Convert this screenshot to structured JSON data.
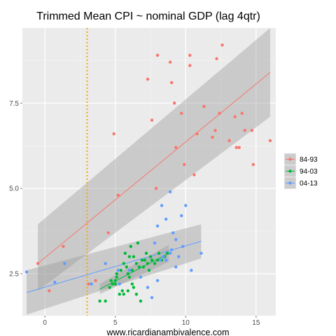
{
  "chart_data": {
    "type": "scatter",
    "title": "Trimmed Mean CPI ~ nominal GDP (lag 4qtr)",
    "xlabel": "",
    "ylabel": "",
    "caption": "www.ricardianambivalence.com",
    "xlim": [
      -1.6,
      16.4
    ],
    "ylim": [
      1.27,
      9.7
    ],
    "x_ticks": [
      0,
      5,
      10,
      15
    ],
    "y_ticks": [
      2.5,
      5.0,
      7.5
    ],
    "y_tick_labels": [
      "2.5",
      "5.0",
      "7.5"
    ],
    "grid": true,
    "background": "#EBEBEB",
    "vline": {
      "x": 3,
      "color": "#FFA500",
      "style": "dotted"
    },
    "legend": {
      "placement": "right"
    },
    "series": [
      {
        "name": "84-93",
        "color": "#F8766D",
        "points": [
          [
            -0.5,
            2.8
          ],
          [
            0.3,
            2.0
          ],
          [
            1.3,
            3.3
          ],
          [
            3.1,
            2.2
          ],
          [
            3.6,
            2.3
          ],
          [
            4.5,
            3.7
          ],
          [
            4.9,
            6.6
          ],
          [
            5.2,
            4.8
          ],
          [
            7.3,
            8.2
          ],
          [
            7.6,
            7.0
          ],
          [
            7.9,
            5.0
          ],
          [
            8.0,
            8.9
          ],
          [
            8.9,
            8.7
          ],
          [
            9.0,
            8.1
          ],
          [
            9.2,
            7.5
          ],
          [
            9.3,
            6.2
          ],
          [
            9.7,
            7.2
          ],
          [
            9.9,
            5.7
          ],
          [
            10.6,
            5.4
          ],
          [
            10.8,
            6.6
          ],
          [
            11.3,
            7.4
          ],
          [
            11.9,
            6.5
          ],
          [
            12.2,
            8.8
          ],
          [
            12.4,
            7.2
          ],
          [
            12.6,
            9.2
          ],
          [
            13.1,
            6.4
          ],
          [
            13.5,
            7.1
          ],
          [
            13.6,
            6.2
          ],
          [
            13.8,
            6.2
          ],
          [
            14.0,
            7.2
          ],
          [
            14.2,
            6.7
          ],
          [
            14.7,
            6.7
          ],
          [
            14.8,
            5.7
          ],
          [
            16.0,
            6.4
          ],
          [
            10.3,
            8.9
          ],
          [
            10.3,
            8.6
          ],
          [
            12.1,
            6.7
          ]
        ],
        "fit": {
          "x": [
            -0.5,
            16.0
          ],
          "y": [
            2.8,
            8.4
          ],
          "ci_low": [
            2.0,
            7.1
          ],
          "ci_high": [
            3.95,
            9.7
          ]
        }
      },
      {
        "name": "94-03",
        "color": "#00BA38",
        "points": [
          [
            3.9,
            1.7
          ],
          [
            4.3,
            1.7
          ],
          [
            4.6,
            2.1
          ],
          [
            4.7,
            2.3
          ],
          [
            4.8,
            2.2
          ],
          [
            5.0,
            2.3
          ],
          [
            5.0,
            2.2
          ],
          [
            5.1,
            2.5
          ],
          [
            5.1,
            2.4
          ],
          [
            5.3,
            1.9
          ],
          [
            5.4,
            2.6
          ],
          [
            5.5,
            2.0
          ],
          [
            5.6,
            1.9
          ],
          [
            5.6,
            2.8
          ],
          [
            5.7,
            3.1
          ],
          [
            5.8,
            2.7
          ],
          [
            5.9,
            2.5
          ],
          [
            5.9,
            2.0
          ],
          [
            6.0,
            3.0
          ],
          [
            6.0,
            2.4
          ],
          [
            6.1,
            3.3
          ],
          [
            6.2,
            2.6
          ],
          [
            6.2,
            2.2
          ],
          [
            6.3,
            3.0
          ],
          [
            6.3,
            2.1
          ],
          [
            6.5,
            2.8
          ],
          [
            6.5,
            1.9
          ],
          [
            6.6,
            3.4
          ],
          [
            6.7,
            2.7
          ],
          [
            6.8,
            1.7
          ],
          [
            6.9,
            2.9
          ],
          [
            7.0,
            2.7
          ],
          [
            7.1,
            2.9
          ],
          [
            7.2,
            3.1
          ],
          [
            7.3,
            2.8
          ],
          [
            7.4,
            2.6
          ],
          [
            7.5,
            3.0
          ],
          [
            7.6,
            2.9
          ],
          [
            7.8,
            2.8
          ],
          [
            8.0,
            2.9
          ],
          [
            8.1,
            3.1
          ],
          [
            8.3,
            2.9
          ],
          [
            8.5,
            3.0
          ],
          [
            8.7,
            3.1
          ]
        ],
        "fit": {
          "x": [
            3.9,
            8.8
          ],
          "y": [
            2.05,
            3.1
          ],
          "ci_low": [
            1.9,
            2.85
          ],
          "ci_high": [
            2.2,
            3.35
          ]
        }
      },
      {
        "name": "04-13",
        "color": "#619CFF",
        "points": [
          [
            -1.3,
            2.55
          ],
          [
            0.7,
            2.25
          ],
          [
            1.4,
            2.8
          ],
          [
            3.3,
            2.2
          ],
          [
            4.3,
            2.8
          ],
          [
            5.2,
            2.6
          ],
          [
            5.3,
            2.2
          ],
          [
            6.0,
            2.6
          ],
          [
            6.8,
            2.4
          ],
          [
            7.3,
            2.1
          ],
          [
            7.6,
            1.8
          ],
          [
            8.0,
            2.3
          ],
          [
            8.2,
            2.9
          ],
          [
            8.4,
            3.0
          ],
          [
            8.6,
            2.9
          ],
          [
            8.9,
            3.1
          ],
          [
            9.0,
            3.2
          ],
          [
            9.3,
            2.7
          ],
          [
            9.5,
            3.0
          ],
          [
            9.7,
            4.2
          ],
          [
            9.8,
            3.3
          ],
          [
            10.0,
            4.5
          ],
          [
            10.4,
            2.6
          ],
          [
            11.1,
            3.1
          ],
          [
            8.3,
            4.5
          ],
          [
            8.6,
            4.1
          ],
          [
            8.9,
            4.9
          ],
          [
            9.1,
            3.7
          ],
          [
            9.3,
            3.5
          ],
          [
            8.0,
            3.9
          ],
          [
            7.8,
            3.4
          ]
        ],
        "fit": {
          "x": [
            -1.3,
            11.1
          ],
          "y": [
            1.95,
            3.45
          ],
          "ci_low": [
            1.3,
            2.95
          ],
          "ci_high": [
            2.6,
            3.95
          ]
        }
      }
    ]
  }
}
